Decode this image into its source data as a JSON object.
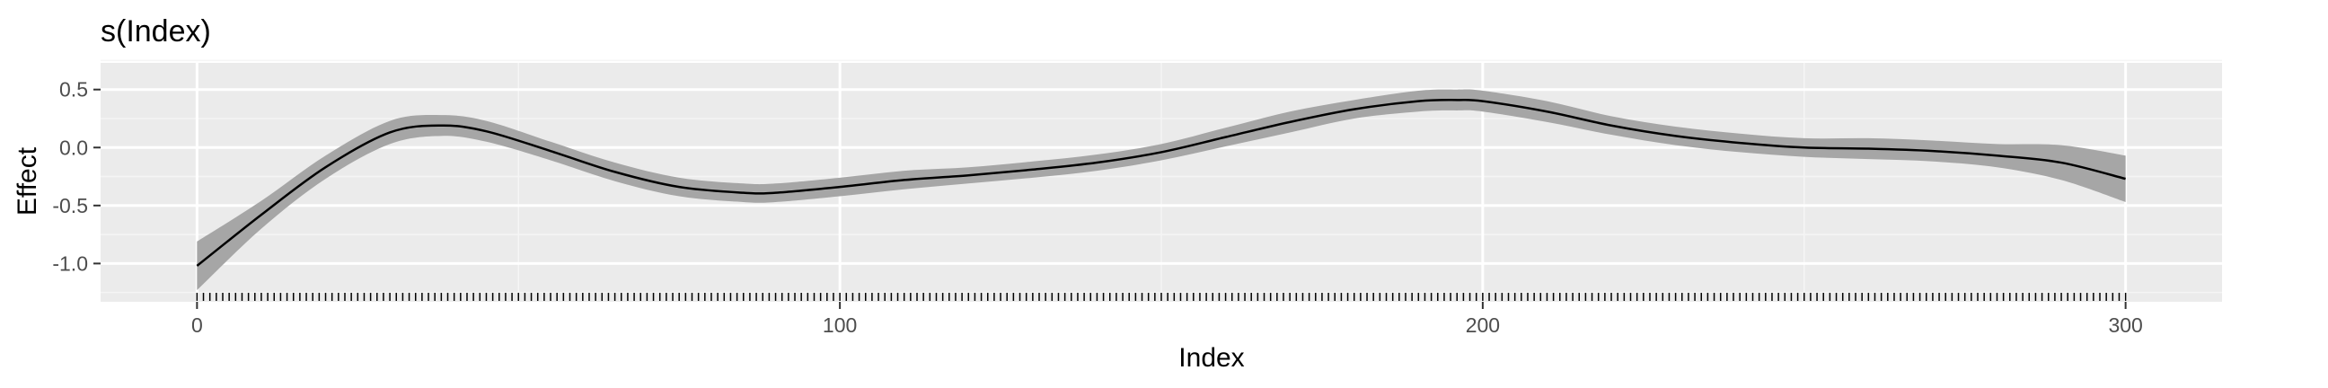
{
  "colors": {
    "panel": "#ebebeb",
    "grid_major": "#ffffff",
    "grid_minor": "#f5f5f5",
    "line": "#000000",
    "ribbon": "#a6a6a6",
    "rug": "#000000",
    "ticks": "#333333"
  },
  "chart_data": {
    "type": "line",
    "title": "s(Index)",
    "xlabel": "Index",
    "ylabel": "Effect",
    "xlim": [
      -15,
      315
    ],
    "ylim": [
      -1.33,
      0.73
    ],
    "x_ticks": [
      0,
      100,
      200,
      300
    ],
    "x_tick_labels": [
      "0",
      "100",
      "200",
      "300"
    ],
    "y_ticks": [
      -1.0,
      -0.5,
      0.0,
      0.5
    ],
    "y_tick_labels": [
      "-1.0",
      "-0.5",
      "0.0",
      "0.5"
    ],
    "grid": true,
    "legend": "none",
    "rug": {
      "from": 0,
      "to": 300,
      "step": 1
    },
    "series": [
      {
        "x": [
          0,
          10,
          20,
          30,
          38,
          45,
          55,
          65,
          75,
          85,
          90,
          100,
          110,
          120,
          130,
          140,
          150,
          160,
          170,
          180,
          190,
          196,
          200,
          210,
          220,
          230,
          240,
          250,
          260,
          270,
          280,
          290,
          300
        ],
        "y": [
          -1.02,
          -0.58,
          -0.17,
          0.13,
          0.19,
          0.14,
          -0.03,
          -0.21,
          -0.34,
          -0.39,
          -0.39,
          -0.34,
          -0.28,
          -0.24,
          -0.19,
          -0.13,
          -0.04,
          0.09,
          0.22,
          0.33,
          0.4,
          0.41,
          0.4,
          0.31,
          0.19,
          0.1,
          0.04,
          0.0,
          -0.01,
          -0.03,
          -0.07,
          -0.13,
          -0.27
        ],
        "lower": [
          -1.23,
          -0.7,
          -0.27,
          0.03,
          0.1,
          0.05,
          -0.11,
          -0.29,
          -0.42,
          -0.47,
          -0.47,
          -0.42,
          -0.36,
          -0.31,
          -0.26,
          -0.2,
          -0.11,
          0.01,
          0.13,
          0.25,
          0.31,
          0.32,
          0.31,
          0.22,
          0.11,
          0.02,
          -0.04,
          -0.08,
          -0.1,
          -0.12,
          -0.17,
          -0.28,
          -0.47
        ],
        "upper": [
          -0.81,
          -0.46,
          -0.07,
          0.23,
          0.28,
          0.23,
          0.05,
          -0.13,
          -0.26,
          -0.31,
          -0.31,
          -0.26,
          -0.2,
          -0.17,
          -0.12,
          -0.06,
          0.03,
          0.17,
          0.31,
          0.41,
          0.49,
          0.5,
          0.49,
          0.4,
          0.27,
          0.18,
          0.12,
          0.08,
          0.08,
          0.06,
          0.03,
          0.02,
          -0.07
        ]
      }
    ]
  }
}
